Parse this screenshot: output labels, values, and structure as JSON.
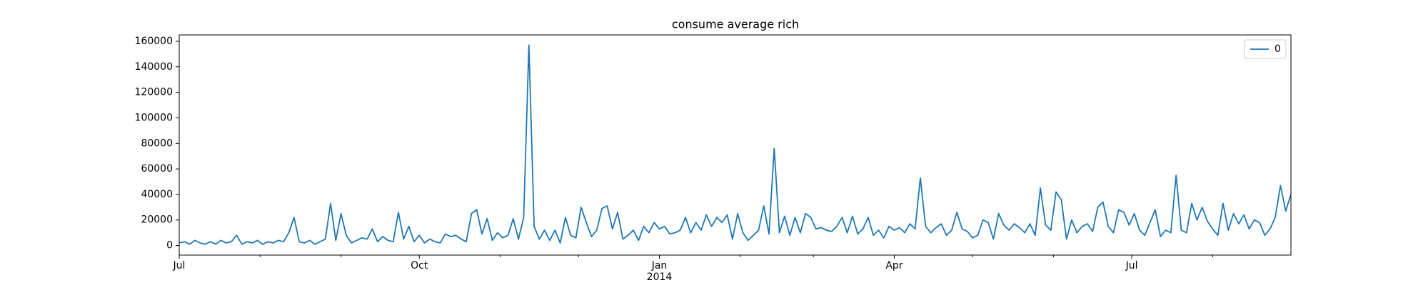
{
  "chart_data": {
    "type": "line",
    "title": "consume average rich",
    "x": [
      0,
      2,
      4,
      6,
      8,
      10,
      12,
      14,
      16,
      18,
      20,
      22,
      24,
      26,
      28,
      30,
      32,
      34,
      36,
      38,
      40,
      42,
      44,
      46,
      48,
      50,
      52,
      54,
      56,
      58,
      60,
      62,
      64,
      66,
      68,
      70,
      72,
      74,
      76,
      78,
      80,
      82,
      84,
      86,
      88,
      90,
      92,
      94,
      96,
      98,
      100,
      102,
      104,
      106,
      108,
      110,
      112,
      114,
      116,
      118,
      120,
      122,
      124,
      126,
      128,
      130,
      132,
      134,
      136,
      138,
      140,
      142,
      144,
      146,
      148,
      150,
      152,
      154,
      156,
      158,
      160,
      162,
      164,
      166,
      168,
      170,
      172,
      174,
      176,
      178,
      180,
      182,
      184,
      186,
      188,
      190,
      192,
      194,
      196,
      198,
      200,
      202,
      204,
      206,
      208,
      210,
      212,
      214,
      216,
      218,
      220,
      222,
      224,
      226,
      228,
      230,
      232,
      234,
      236,
      238,
      240,
      242,
      244,
      246,
      248,
      250,
      252,
      254,
      256,
      258,
      260,
      262,
      264,
      266,
      268,
      270,
      272,
      274,
      276,
      278,
      280,
      282,
      284,
      286,
      288,
      290,
      292,
      294,
      296,
      298,
      300,
      302,
      304,
      306,
      308,
      310,
      312,
      314,
      316,
      318,
      320,
      322,
      324,
      326,
      328,
      330,
      332,
      334,
      336,
      338,
      340,
      342,
      344,
      346,
      348,
      350,
      352,
      354,
      356,
      358,
      360,
      362,
      364,
      366,
      368,
      370,
      372,
      374,
      376,
      378,
      380,
      382,
      384,
      386,
      388,
      390,
      392,
      394,
      396,
      398,
      400,
      402,
      404,
      406,
      408,
      410,
      412,
      414,
      416,
      418,
      420,
      422,
      424,
      426
    ],
    "series": [
      {
        "name": "0",
        "color": "#1f77b4",
        "values": [
          2000,
          3000,
          1000,
          4000,
          2000,
          1000,
          3000,
          1000,
          4000,
          2000,
          3000,
          8000,
          1000,
          3000,
          2000,
          4000,
          1000,
          3000,
          2000,
          4000,
          3000,
          10000,
          22000,
          3000,
          2000,
          4000,
          1000,
          3000,
          5000,
          33000,
          4000,
          25000,
          8000,
          2000,
          4000,
          6000,
          5000,
          13000,
          3000,
          7000,
          4000,
          3000,
          26000,
          5000,
          15000,
          3000,
          8000,
          2000,
          5000,
          3000,
          2000,
          9000,
          7000,
          8000,
          5000,
          3000,
          25000,
          28000,
          9000,
          21000,
          4000,
          10000,
          6000,
          8000,
          21000,
          5000,
          22000,
          157000,
          15000,
          5000,
          12000,
          4000,
          12000,
          2000,
          22000,
          8000,
          6000,
          30000,
          18000,
          7000,
          12000,
          29000,
          31000,
          13000,
          26000,
          5000,
          8000,
          12000,
          4000,
          15000,
          10000,
          18000,
          13000,
          15000,
          9000,
          10000,
          12000,
          22000,
          10000,
          18000,
          12000,
          24000,
          15000,
          22000,
          18000,
          24000,
          5000,
          25000,
          10000,
          4000,
          8000,
          12000,
          31000,
          9000,
          76000,
          10000,
          23000,
          8000,
          22000,
          10000,
          25000,
          22000,
          13000,
          14000,
          12000,
          11000,
          15000,
          22000,
          10000,
          23000,
          9000,
          13000,
          22000,
          8000,
          12000,
          6000,
          15000,
          12000,
          14000,
          10000,
          17000,
          13000,
          53000,
          15000,
          10000,
          14000,
          17000,
          8000,
          12000,
          26000,
          13000,
          11000,
          6000,
          8000,
          20000,
          18000,
          5000,
          25000,
          16000,
          12000,
          17000,
          14000,
          10000,
          17000,
          8000,
          45000,
          16000,
          12000,
          42000,
          36000,
          5000,
          20000,
          10000,
          15000,
          17000,
          11000,
          30000,
          34000,
          15000,
          10000,
          28000,
          26000,
          16000,
          25000,
          12000,
          8000,
          18000,
          28000,
          7000,
          12000,
          10000,
          55000,
          12000,
          10000,
          33000,
          20000,
          30000,
          19000,
          13000,
          8000,
          33000,
          12000,
          25000,
          17000,
          24000,
          13000,
          20000,
          18000,
          8000,
          13000,
          22000,
          47000,
          27000,
          40000
        ]
      }
    ],
    "xlim": [
      0,
      426
    ],
    "xticks": [
      {
        "value": 0,
        "label": "Jul"
      },
      {
        "value": 92,
        "label": "Oct"
      },
      {
        "value": 184,
        "label": "Jan",
        "sublabel": "2014"
      },
      {
        "value": 274,
        "label": "Apr"
      },
      {
        "value": 365,
        "label": "Jul"
      }
    ],
    "xminorticks": [
      31,
      62,
      123,
      153,
      215,
      243,
      304,
      335,
      396
    ],
    "ylim": [
      -7500,
      165000
    ],
    "yticks": [
      0,
      20000,
      40000,
      60000,
      80000,
      100000,
      120000,
      140000,
      160000
    ],
    "legend": "upper right"
  }
}
